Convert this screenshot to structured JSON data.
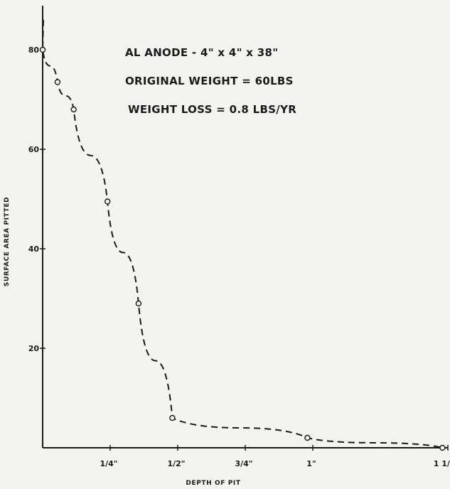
{
  "chart_data": {
    "type": "line",
    "title": "",
    "annotations": [
      "AL ANODE - 4\" x 4\" x 38\"",
      "ORIGINAL WEIGHT = 60LBS",
      "WEIGHT LOSS = 0.8 LBS/YR"
    ],
    "xlabel": "DEPTH OF PIT",
    "ylabel": "SURFACE AREA PITTED",
    "xlim": [
      0,
      1.5
    ],
    "ylim": [
      0,
      85
    ],
    "x_ticks": [
      {
        "value": 0.25,
        "label": "1/4\""
      },
      {
        "value": 0.5,
        "label": "1/2\""
      },
      {
        "value": 0.75,
        "label": "3/4\""
      },
      {
        "value": 1.0,
        "label": "1\""
      },
      {
        "value": 1.5,
        "label": "1 1/2\""
      }
    ],
    "y_ticks": [
      {
        "value": 20,
        "label": "20"
      },
      {
        "value": 40,
        "label": "40"
      },
      {
        "value": 60,
        "label": "60"
      },
      {
        "value": 80,
        "label": "80"
      }
    ],
    "grid": false,
    "line_style": "dashed",
    "marker": "open-circle",
    "series": [
      {
        "x": [
          0.0,
          0.055,
          0.115,
          0.24,
          0.355,
          0.48,
          0.98,
          1.48
        ],
        "y": [
          80,
          73.5,
          68,
          49.5,
          29,
          6,
          2,
          0
        ]
      }
    ],
    "colors": {
      "ink": "#1a1a1a",
      "paper": "#f4f3ef"
    }
  }
}
